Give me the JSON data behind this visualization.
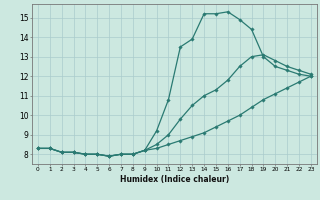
{
  "xlabel": "Humidex (Indice chaleur)",
  "bg_color": "#cce8e0",
  "grid_color": "#aacccc",
  "line_color": "#2a7a72",
  "marker_color": "#2a7a72",
  "xlim": [
    -0.5,
    23.5
  ],
  "ylim": [
    7.5,
    15.7
  ],
  "xticks": [
    0,
    1,
    2,
    3,
    4,
    5,
    6,
    7,
    8,
    9,
    10,
    11,
    12,
    13,
    14,
    15,
    16,
    17,
    18,
    19,
    20,
    21,
    22,
    23
  ],
  "yticks": [
    8,
    9,
    10,
    11,
    12,
    13,
    14,
    15
  ],
  "series": [
    {
      "x": [
        0,
        1,
        2,
        3,
        4,
        5,
        6,
        7,
        8,
        9,
        10,
        11,
        12,
        13,
        14,
        15,
        16,
        17,
        18,
        19,
        20,
        21,
        22,
        23
      ],
      "y": [
        8.3,
        8.3,
        8.1,
        8.1,
        8.0,
        8.0,
        7.9,
        8.0,
        8.0,
        8.2,
        9.2,
        10.8,
        13.5,
        13.9,
        15.2,
        15.2,
        15.3,
        14.9,
        14.4,
        13.0,
        12.5,
        12.3,
        12.1,
        12.0
      ]
    },
    {
      "x": [
        0,
        1,
        2,
        3,
        4,
        5,
        6,
        7,
        8,
        9,
        10,
        11,
        12,
        13,
        14,
        15,
        16,
        17,
        18,
        19,
        20,
        21,
        22,
        23
      ],
      "y": [
        8.3,
        8.3,
        8.1,
        8.1,
        8.0,
        8.0,
        7.9,
        8.0,
        8.0,
        8.2,
        8.5,
        9.0,
        9.8,
        10.5,
        11.0,
        11.3,
        11.8,
        12.5,
        13.0,
        13.1,
        12.8,
        12.5,
        12.3,
        12.1
      ]
    },
    {
      "x": [
        0,
        1,
        2,
        3,
        4,
        5,
        6,
        7,
        8,
        9,
        10,
        11,
        12,
        13,
        14,
        15,
        16,
        17,
        18,
        19,
        20,
        21,
        22,
        23
      ],
      "y": [
        8.3,
        8.3,
        8.1,
        8.1,
        8.0,
        8.0,
        7.9,
        8.0,
        8.0,
        8.2,
        8.3,
        8.5,
        8.7,
        8.9,
        9.1,
        9.4,
        9.7,
        10.0,
        10.4,
        10.8,
        11.1,
        11.4,
        11.7,
        12.0
      ]
    }
  ]
}
